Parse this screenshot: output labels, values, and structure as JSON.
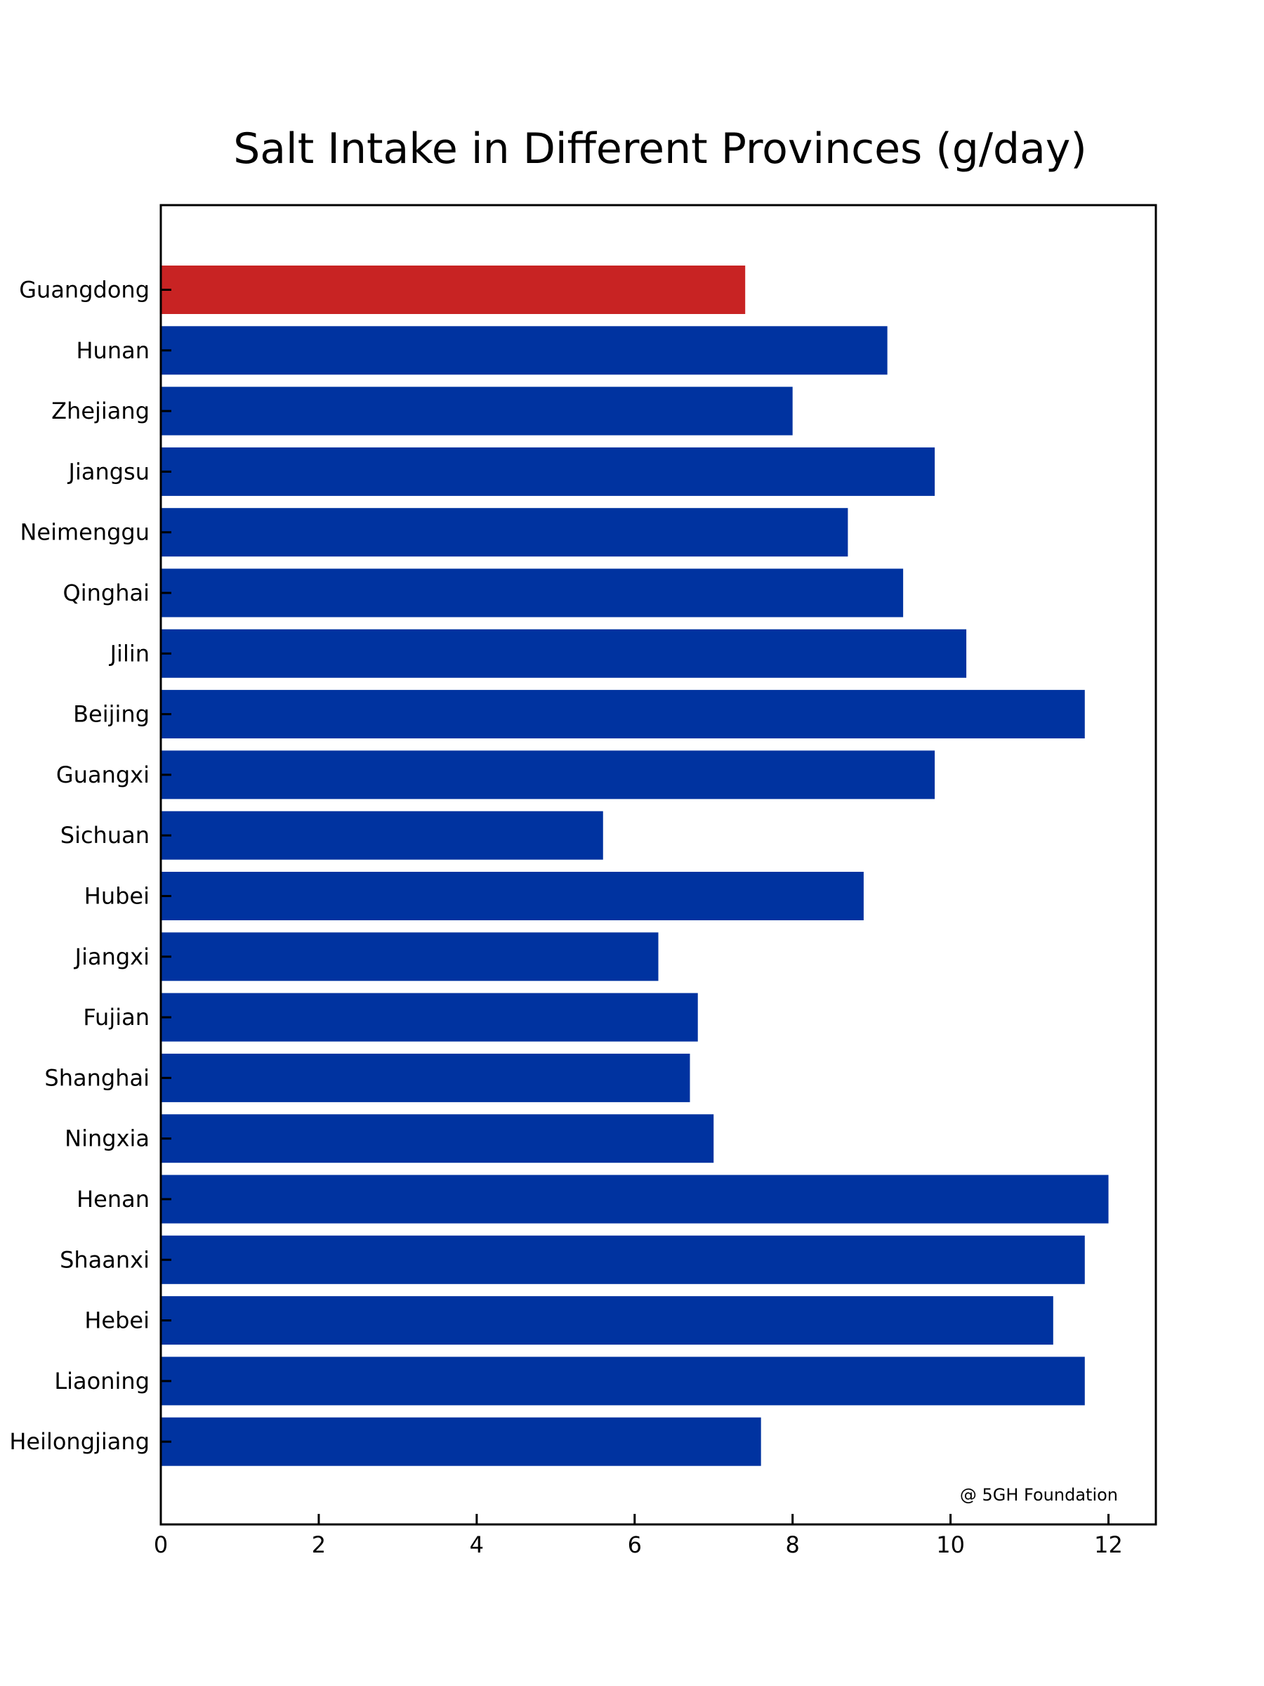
{
  "chart_data": {
    "type": "bar",
    "orientation": "horizontal",
    "title": "Salt Intake in Different Provinces (g/day)",
    "xlabel": "",
    "ylabel": "",
    "categories": [
      "Guangdong",
      "Hunan",
      "Zhejiang",
      "Jiangsu",
      "Neimenggu",
      "Qinghai",
      "Jilin",
      "Beijing",
      "Guangxi",
      "Sichuan",
      "Hubei",
      "Jiangxi",
      "Fujian",
      "Shanghai",
      "Ningxia",
      "Henan",
      "Shaanxi",
      "Hebei",
      "Liaoning",
      "Heilongjiang"
    ],
    "values": [
      7.4,
      9.2,
      8.0,
      9.8,
      8.7,
      9.4,
      10.2,
      11.7,
      9.8,
      5.6,
      8.9,
      6.3,
      6.8,
      6.7,
      7.0,
      12.0,
      11.7,
      11.3,
      11.7,
      7.6
    ],
    "highlight_index": 0,
    "colors": {
      "default_bar": "#0033a0",
      "highlight_bar": "#c82323",
      "axis": "#000000"
    },
    "xlim": [
      0,
      12.6
    ],
    "xticks": [
      0,
      2,
      4,
      6,
      8,
      10,
      12
    ],
    "grid": false,
    "legend": "none",
    "annotation": "@ 5GH Foundation"
  }
}
